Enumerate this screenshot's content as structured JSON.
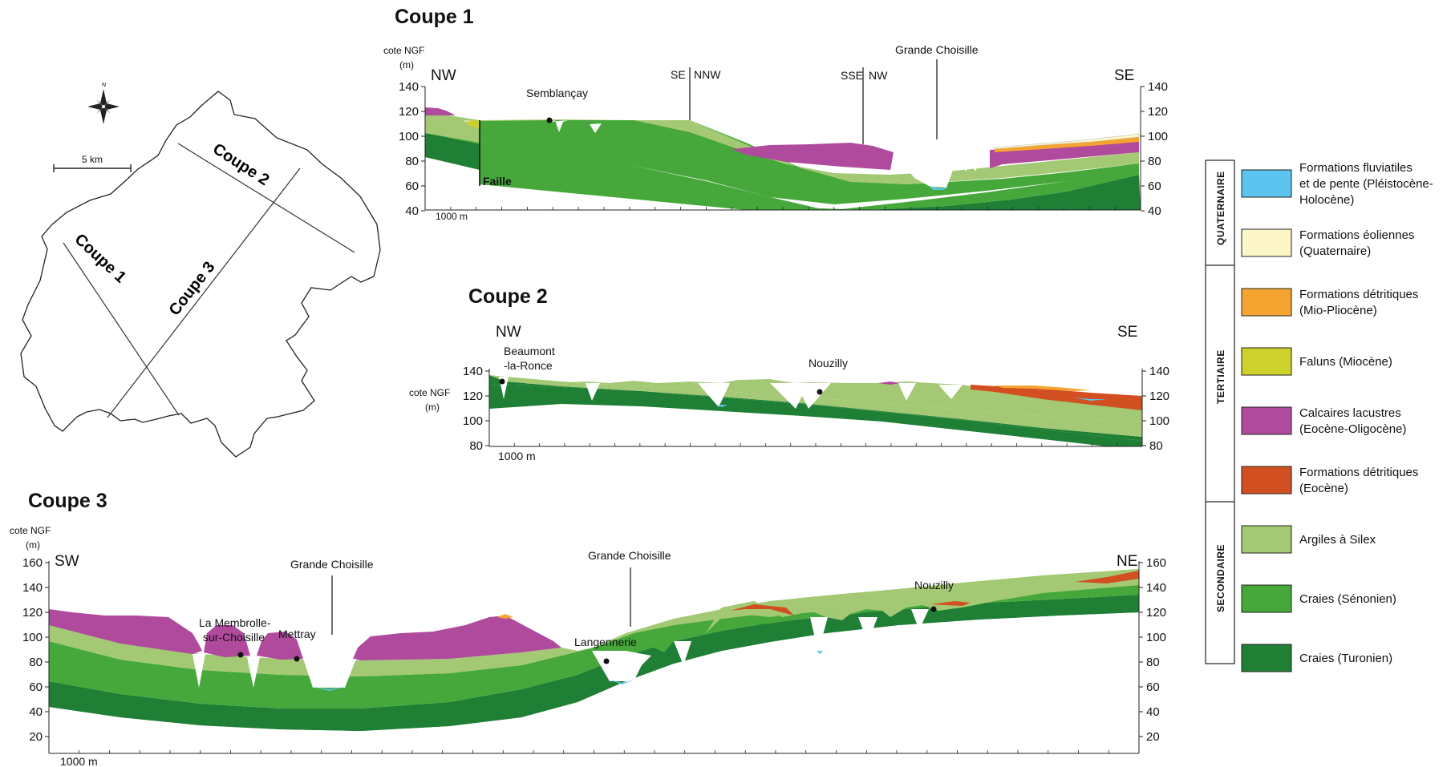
{
  "colors": {
    "quaternaire": "#5bc4ef",
    "eolien": "#fdf6c8",
    "mio_pliocene": "#f6a431",
    "faluns": "#cdd12c",
    "calcaires": "#b04a9c",
    "eocene": "#d24f21",
    "argiles": "#a3c974",
    "senonien": "#46a83a",
    "turonien": "#1f7f35"
  },
  "map": {
    "coupe1": "Coupe 1",
    "coupe2": "Coupe 2",
    "coupe3": "Coupe 3",
    "scale": "5 km",
    "north": "N",
    "north_icon": "compass-rose-icon"
  },
  "section1": {
    "title": "Coupe 1",
    "axis_label_1": "cote NGF",
    "axis_label_2": "(m)",
    "left_dir": "NW",
    "right_dir": "SE",
    "ticks": [
      "140",
      "120",
      "100",
      "80",
      "60",
      "40"
    ],
    "scale": "1000 m",
    "labels": {
      "semblancay": "Semblançay",
      "se": "SE",
      "nnw": "NNW",
      "sse": "SSE",
      "nw": "NW",
      "grande_choisille": "Grande Choisille",
      "faille": "Faille"
    }
  },
  "section2": {
    "title": "Coupe 2",
    "axis_label_1": "cote NGF",
    "axis_label_2": "(m)",
    "left_dir": "NW",
    "right_dir": "SE",
    "ticks": [
      "140",
      "120",
      "100",
      "80"
    ],
    "scale": "1000 m",
    "labels": {
      "beaumont_1": "Beaumont",
      "beaumont_2": "-la-Ronce",
      "nouzilly": "Nouzilly"
    }
  },
  "section3": {
    "title": "Coupe 3",
    "axis_label_1": "cote NGF",
    "axis_label_2": "(m)",
    "left_dir": "SW",
    "right_dir": "NE",
    "ticks": [
      "160",
      "140",
      "120",
      "100",
      "80",
      "60",
      "40",
      "20"
    ],
    "scale": "1000 m",
    "labels": {
      "membrolle_1": "La Membrolle-",
      "membrolle_2": "sur-Choisille",
      "mettray": "Mettray",
      "grande_choisille_1": "Grande Choisille",
      "grande_choisille_2": "Grande Choisille",
      "langennerie": "Langennerie",
      "nouzilly": "Nouzilly"
    }
  },
  "legend": {
    "eras": [
      "QUATERNAIRE",
      "TERTIAIRE",
      "SECONDAIRE"
    ],
    "items": [
      {
        "key": "quaternaire",
        "lines": [
          "Formations fluviatiles",
          "et de pente (Pléistocène-",
          "Holocène)"
        ]
      },
      {
        "key": "eolien",
        "lines": [
          "Formations éoliennes",
          "(Quaternaire)"
        ]
      },
      {
        "key": "mio_pliocene",
        "lines": [
          "Formations détritiques",
          "(Mio-Pliocène)"
        ]
      },
      {
        "key": "faluns",
        "lines": [
          "Faluns (Miocène)"
        ]
      },
      {
        "key": "calcaires",
        "lines": [
          "Calcaires lacustres",
          "(Eocène-Oligocène)"
        ]
      },
      {
        "key": "eocene",
        "lines": [
          "Formations détritiques",
          "(Eocène)"
        ]
      },
      {
        "key": "argiles",
        "lines": [
          "Argiles à Silex"
        ]
      },
      {
        "key": "senonien",
        "lines": [
          "Craies (Sénonien)"
        ]
      },
      {
        "key": "turonien",
        "lines": [
          "Craies (Turonien)"
        ]
      }
    ]
  }
}
